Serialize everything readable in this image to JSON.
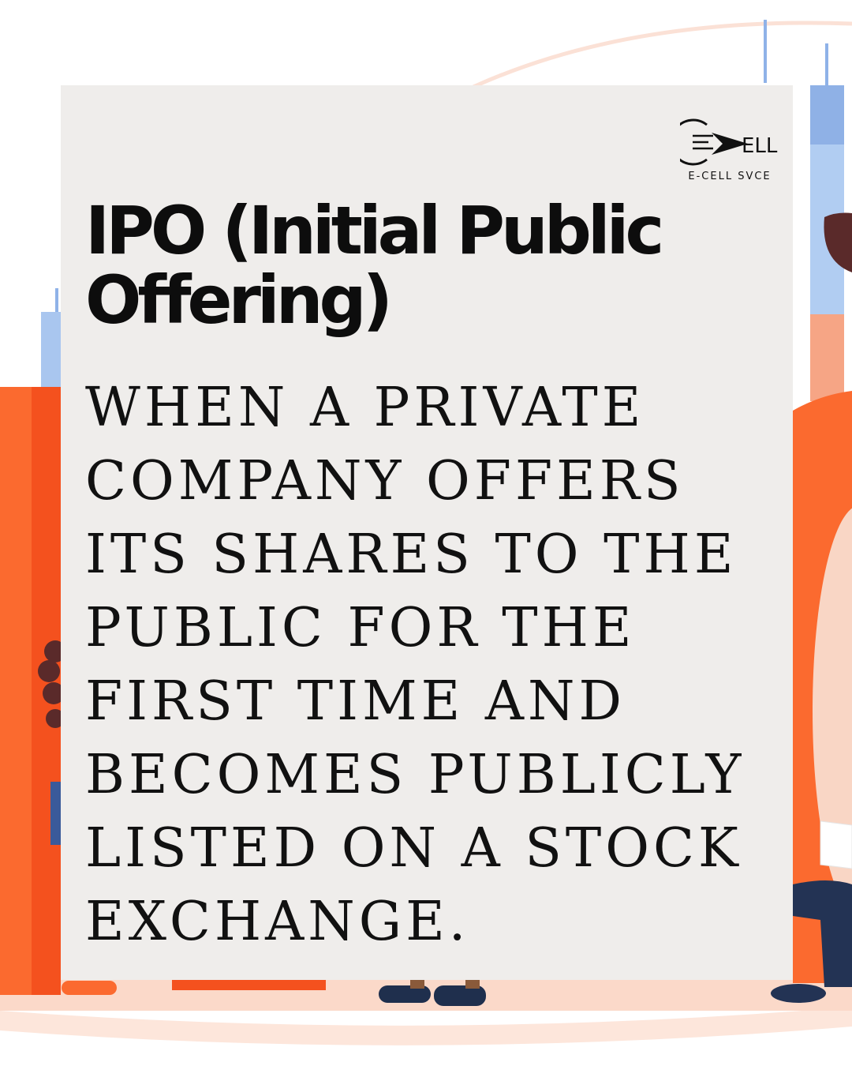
{
  "brand": {
    "logo_text": "ELL",
    "caption": "E-CELL SVCE"
  },
  "post": {
    "title": "IPO (Initial Public Offering)",
    "definition": "WHEN A PRIVATE COMPANY OFFERS ITS SHARES TO THE PUBLIC FOR THE FIRST TIME AND BECOMES PUBLICLY LISTED ON A STOCK EXCHANGE."
  },
  "colors": {
    "accent_orange": "#fb6a2f",
    "deep_orange": "#f4511e",
    "peach": "#f9cdb4",
    "sky_blue": "#a9c6ef",
    "card_bg": "#efedeb",
    "text": "#111111"
  },
  "icons": {
    "logo": "arrow-e-cell-logo",
    "background": "people-with-bar-charts-illustration"
  }
}
